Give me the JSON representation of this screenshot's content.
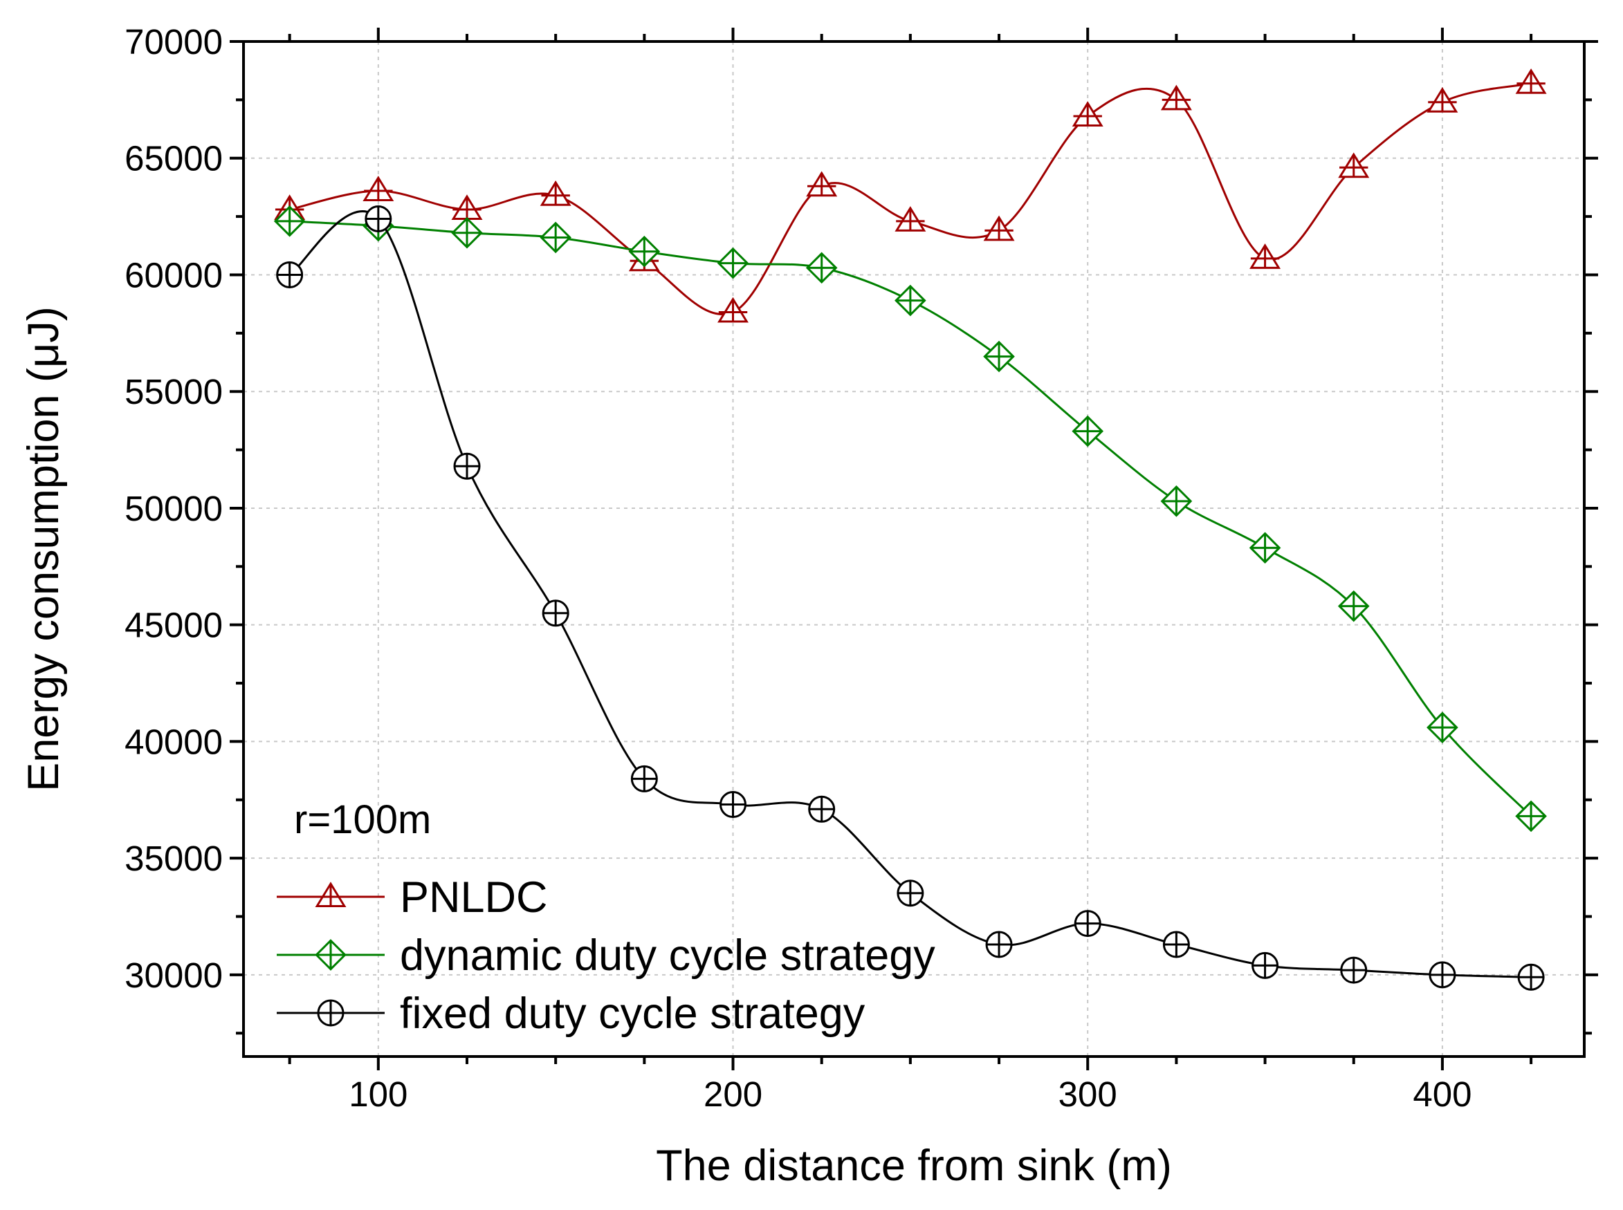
{
  "chart_data": {
    "type": "line",
    "title": "",
    "xlabel": "The distance from sink (m)",
    "ylabel": "Energy consumption (μJ)",
    "xlim": [
      62,
      440
    ],
    "ylim": [
      26500,
      70000
    ],
    "x_ticks": [
      100,
      200,
      300,
      400
    ],
    "x_tick_labels": [
      "100",
      "200",
      "300",
      "400"
    ],
    "y_ticks": [
      30000,
      35000,
      40000,
      45000,
      50000,
      55000,
      60000,
      65000,
      70000
    ],
    "y_tick_labels": [
      "30000",
      "35000",
      "40000",
      "45000",
      "50000",
      "55000",
      "60000",
      "65000",
      "70000"
    ],
    "grid": true,
    "annotation": "r=100m",
    "legend_position": "bottom-left",
    "x": [
      75,
      100,
      125,
      150,
      175,
      200,
      225,
      250,
      275,
      300,
      325,
      350,
      375,
      400,
      425
    ],
    "series": [
      {
        "name": "PNLDC",
        "marker": "triangle",
        "color": "#a00000",
        "values": [
          62800,
          63600,
          62800,
          63400,
          60600,
          58400,
          63800,
          62300,
          61900,
          66800,
          67500,
          60700,
          64600,
          67400,
          68200
        ]
      },
      {
        "name": "dynamic duty cycle strategy",
        "marker": "diamond",
        "color": "#008000",
        "values": [
          62300,
          62100,
          61800,
          61600,
          61000,
          60500,
          60300,
          58900,
          56500,
          53300,
          50300,
          48300,
          45800,
          40600,
          36800
        ]
      },
      {
        "name": "fixed duty cycle strategy",
        "marker": "circle",
        "color": "#000000",
        "values": [
          60000,
          62400,
          51800,
          45500,
          38400,
          37300,
          37100,
          33500,
          31300,
          32200,
          31300,
          30400,
          30200,
          30000,
          29900
        ]
      }
    ]
  }
}
